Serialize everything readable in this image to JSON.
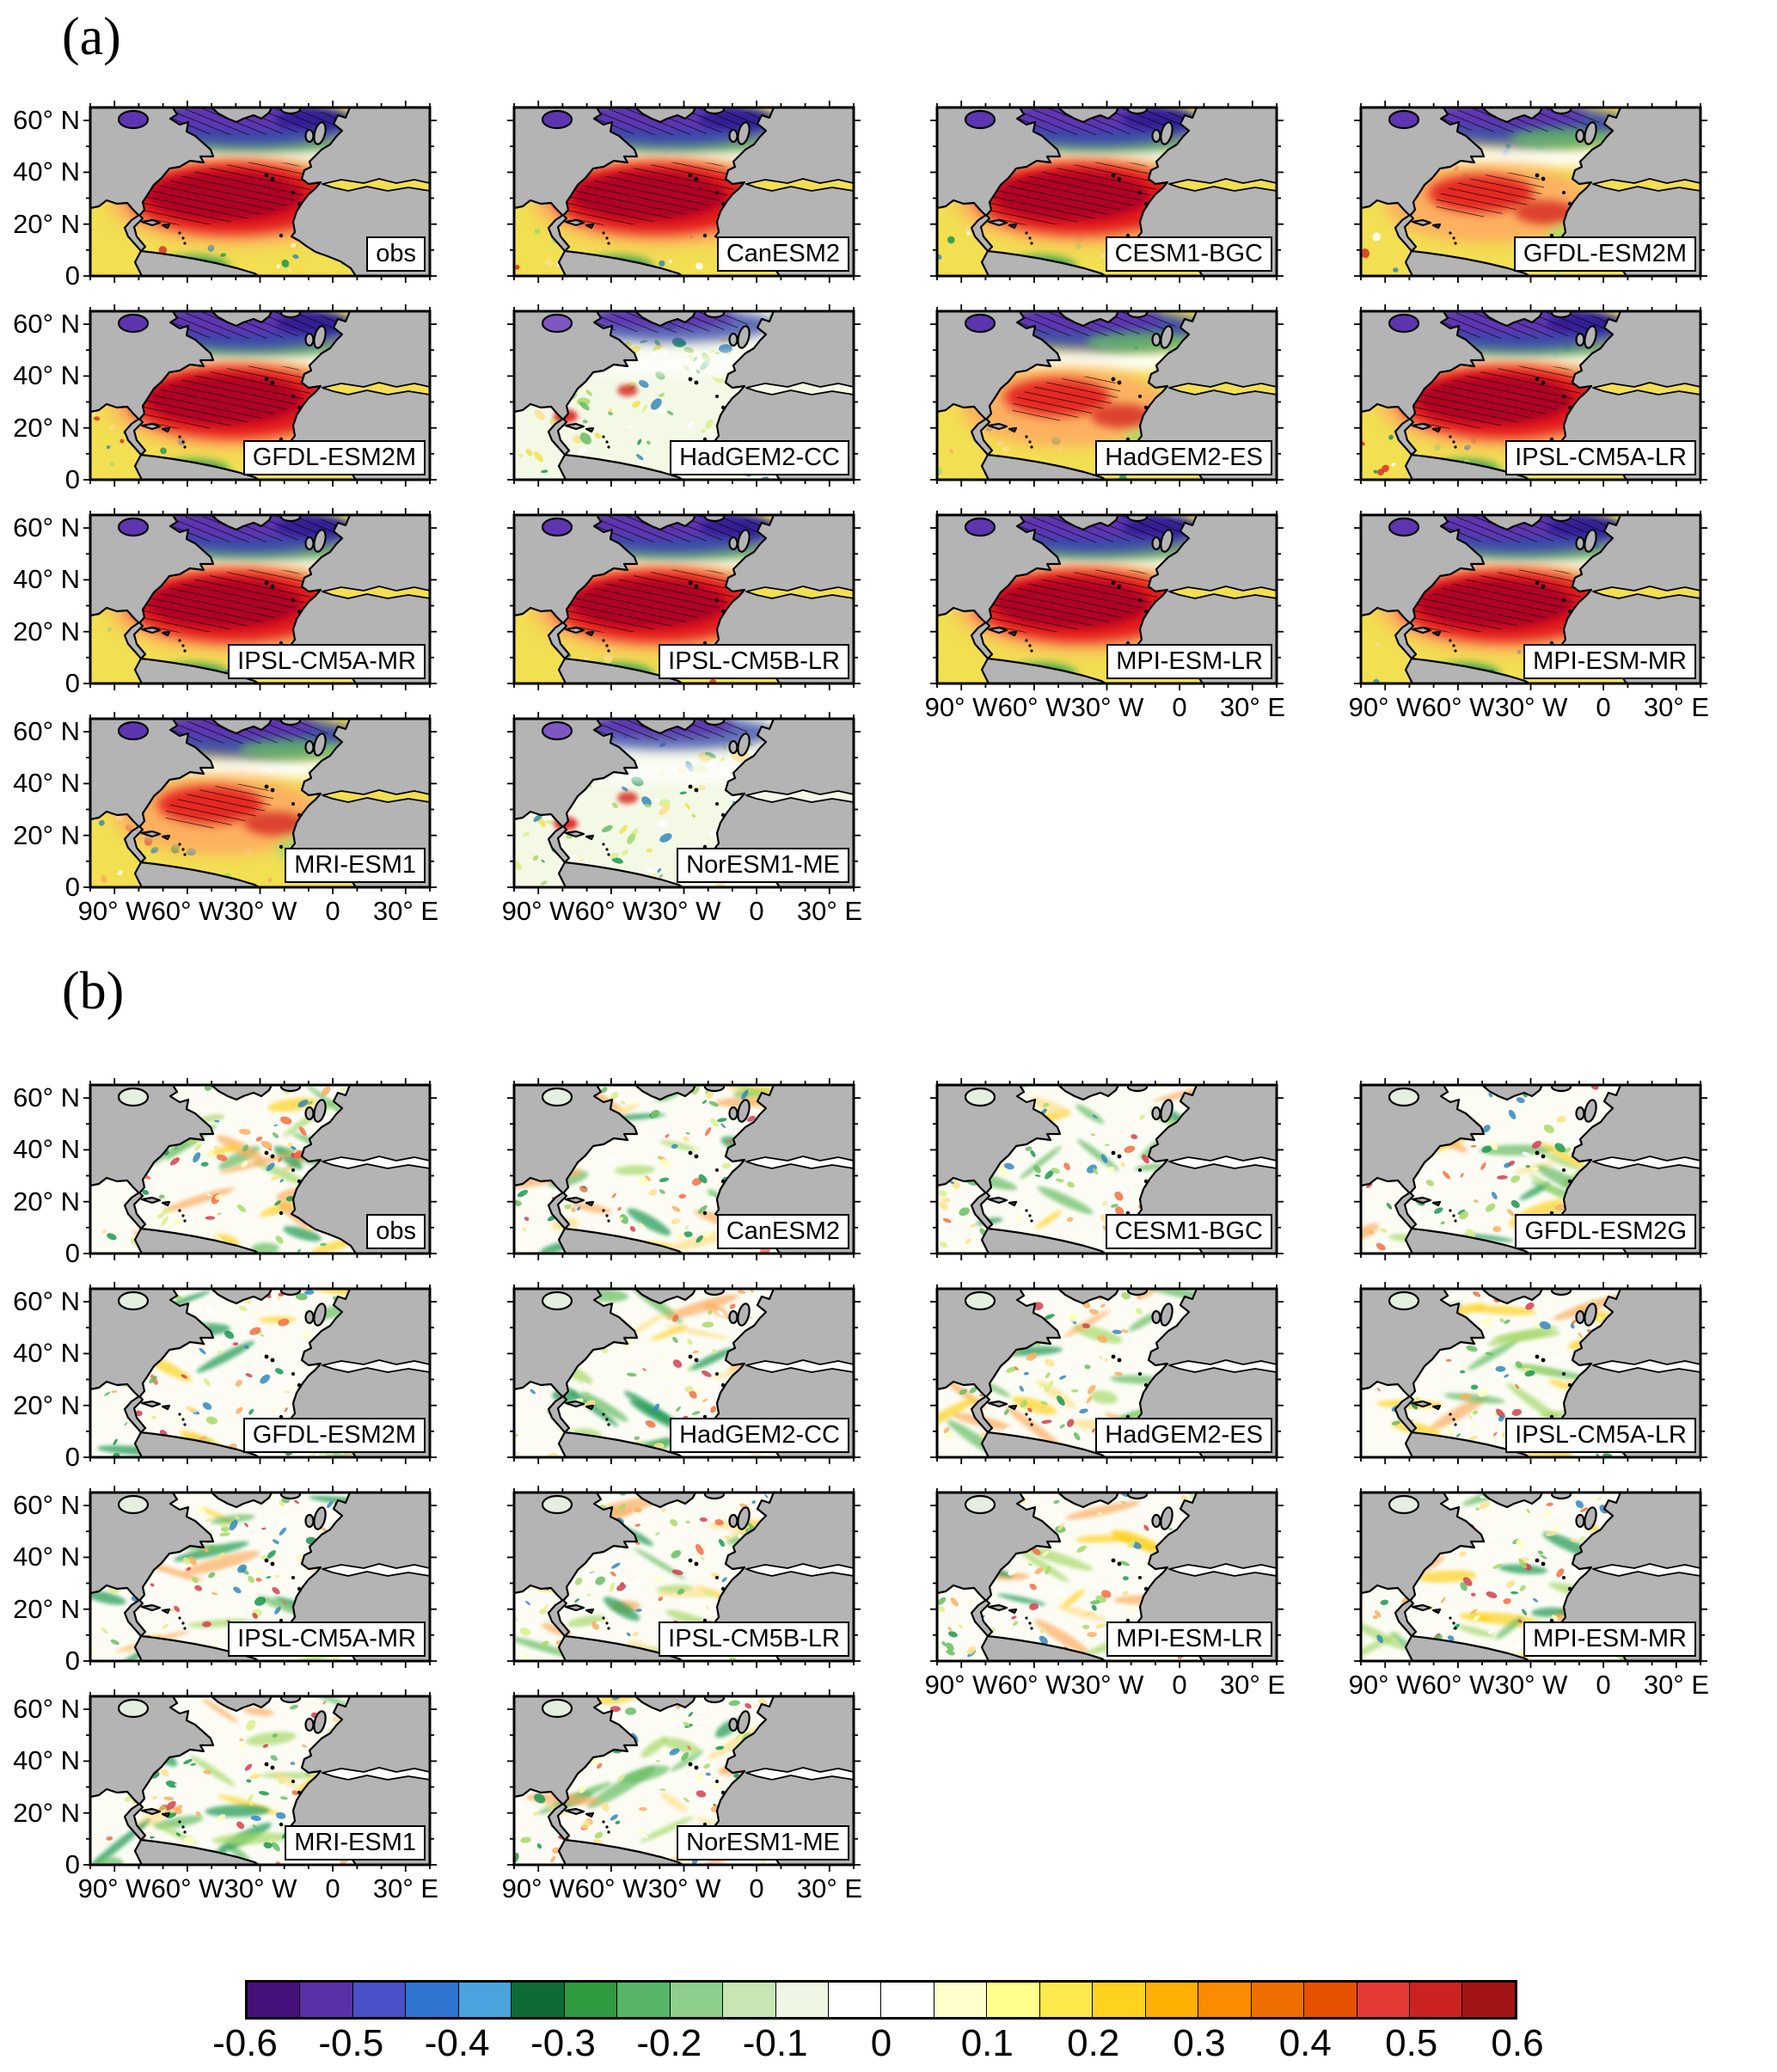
{
  "figure": {
    "panel_a_label": "(a)",
    "panel_b_label": "(b)"
  },
  "axes": {
    "y_ticks": [
      "60° N",
      "40° N",
      "20° N",
      "0"
    ],
    "x_ticks": [
      "90° W",
      "60° W",
      "30° W",
      "0",
      "30° E"
    ]
  },
  "panel_a": {
    "subplots": [
      {
        "label": "obs"
      },
      {
        "label": "CanESM2"
      },
      {
        "label": "CESM1-BGC"
      },
      {
        "label": "GFDL-ESM2M"
      },
      {
        "label": "GFDL-ESM2M"
      },
      {
        "label": "HadGEM2-CC"
      },
      {
        "label": "HadGEM2-ES"
      },
      {
        "label": "IPSL-CM5A-LR"
      },
      {
        "label": "IPSL-CM5A-MR"
      },
      {
        "label": "IPSL-CM5B-LR"
      },
      {
        "label": "MPI-ESM-LR"
      },
      {
        "label": "MPI-ESM-MR"
      },
      {
        "label": "MRI-ESM1"
      },
      {
        "label": "NorESM1-ME"
      }
    ]
  },
  "panel_b": {
    "subplots": [
      {
        "label": "obs"
      },
      {
        "label": "CanESM2"
      },
      {
        "label": "CESM1-BGC"
      },
      {
        "label": "GFDL-ESM2G"
      },
      {
        "label": "GFDL-ESM2M"
      },
      {
        "label": "HadGEM2-CC"
      },
      {
        "label": "HadGEM2-ES"
      },
      {
        "label": "IPSL-CM5A-LR"
      },
      {
        "label": "IPSL-CM5A-MR"
      },
      {
        "label": "IPSL-CM5B-LR"
      },
      {
        "label": "MPI-ESM-LR"
      },
      {
        "label": "MPI-ESM-MR"
      },
      {
        "label": "MRI-ESM1"
      },
      {
        "label": "NorESM1-ME"
      }
    ]
  },
  "colorbar": {
    "tick_labels": [
      "-0.6",
      "-0.5",
      "-0.4",
      "-0.3",
      "-0.2",
      "-0.1",
      "0",
      "0.1",
      "0.2",
      "0.3",
      "0.4",
      "0.5",
      "0.6"
    ],
    "colors": [
      "#45107a",
      "#5a30a8",
      "#4a50c8",
      "#2f74d0",
      "#4aa3dd",
      "#0e6b35",
      "#2f9a3f",
      "#56b567",
      "#8ed08b",
      "#c7e6b4",
      "#eef7e4",
      "#ffffff",
      "#ffffff",
      "#ffffcc",
      "#ffff8c",
      "#ffe94d",
      "#ffd21f",
      "#ffb000",
      "#fb8c00",
      "#f06e00",
      "#e65100",
      "#e53935",
      "#cc2222",
      "#a31515"
    ]
  }
}
